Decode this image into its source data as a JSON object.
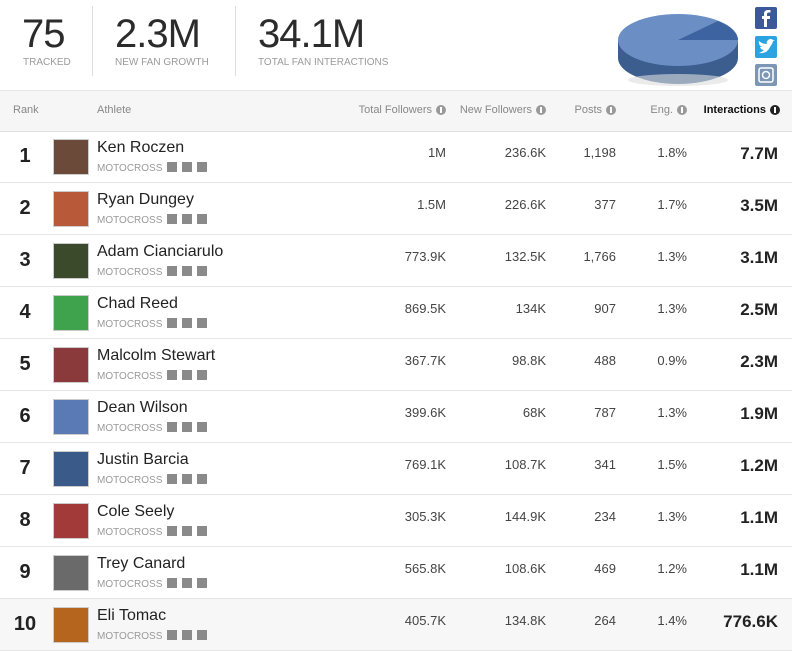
{
  "stats": [
    {
      "value": "75",
      "label": "TRACKED"
    },
    {
      "value": "2.3M",
      "label": "NEW FAN GROWTH"
    },
    {
      "value": "34.1M",
      "label": "TOTAL FAN INTERACTIONS"
    }
  ],
  "table": {
    "headers": [
      "Rank",
      "Athlete",
      "Total Followers",
      "New Followers",
      "Posts",
      "Eng.",
      "Interactions"
    ],
    "rows": [
      [
        "1",
        "Ken Roczen",
        "MOTOCROSS",
        "1M",
        "236.6K",
        "1,198",
        "1.8%",
        "7.7M"
      ],
      [
        "2",
        "Ryan Dungey",
        "MOTOCROSS",
        "1.5M",
        "226.6K",
        "377",
        "1.7%",
        "3.5M"
      ],
      [
        "3",
        "Adam Cianciarulo",
        "MOTOCROSS",
        "773.9K",
        "132.5K",
        "1,766",
        "1.3%",
        "3.1M"
      ],
      [
        "4",
        "Chad Reed",
        "MOTOCROSS",
        "869.5K",
        "134K",
        "907",
        "1.3%",
        "2.5M"
      ],
      [
        "5",
        "Malcolm Stewart",
        "MOTOCROSS",
        "367.7K",
        "98.8K",
        "488",
        "0.9%",
        "2.3M"
      ],
      [
        "6",
        "Dean Wilson",
        "MOTOCROSS",
        "399.6K",
        "68K",
        "787",
        "1.3%",
        "1.9M"
      ],
      [
        "7",
        "Justin Barcia",
        "MOTOCROSS",
        "769.1K",
        "108.7K",
        "341",
        "1.5%",
        "1.2M"
      ],
      [
        "8",
        "Cole Seely",
        "MOTOCROSS",
        "305.3K",
        "144.9K",
        "234",
        "1.3%",
        "1.1M"
      ],
      [
        "9",
        "Trey Canard",
        "MOTOCROSS",
        "565.8K",
        "108.6K",
        "469",
        "1.2%",
        "1.1M"
      ],
      [
        "10",
        "Eli Tomac",
        "MOTOCROSS",
        "405.7K",
        "134.8K",
        "264",
        "1.4%",
        "776.6K"
      ]
    ]
  }
}
